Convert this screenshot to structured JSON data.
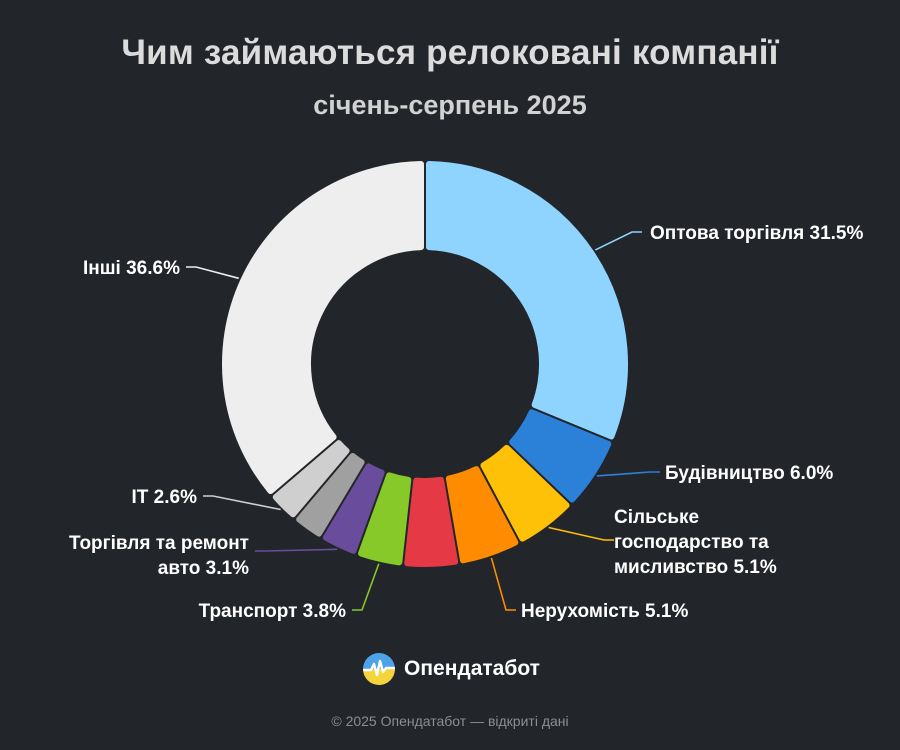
{
  "chart_data": {
    "type": "pie",
    "title": "Чим займаються релоковані компанії",
    "subtitle": "січень-серпень 2025",
    "slices": [
      {
        "label": "Оптова торгівля",
        "value": 31.5,
        "value_label": "31.5%",
        "color": "#8fd4ff",
        "label_lines": [
          "Оптова торгівля 31.5%"
        ]
      },
      {
        "label": "Будівництво",
        "value": 6.0,
        "value_label": "6.0%",
        "color": "#2b80d8",
        "label_lines": [
          "Будівництво 6.0%"
        ]
      },
      {
        "label": "Сільське господарство та мисливство",
        "value": 5.1,
        "value_label": "5.1%",
        "color": "#ffc107",
        "label_lines": [
          "Сільське",
          "господарство та",
          "мисливство 5.1%"
        ]
      },
      {
        "label": "Нерухомість",
        "value": 5.1,
        "value_label": "5.1%",
        "color": "#ff8c00",
        "label_lines": [
          "Нерухомість 5.1%"
        ]
      },
      {
        "label": "",
        "value": 4.5,
        "value_label": "",
        "color": "#e63946",
        "label_lines": []
      },
      {
        "label": "Транспорт",
        "value": 3.8,
        "value_label": "3.8%",
        "color": "#86c928",
        "label_lines": [
          "Транспорт 3.8%"
        ]
      },
      {
        "label": "Торгівля та ремонт авто",
        "value": 3.1,
        "value_label": "3.1%",
        "color": "#6a4c9c",
        "label_lines": [
          "Торгівля та ремонт",
          "авто 3.1%"
        ]
      },
      {
        "label": "",
        "value": 2.6,
        "value_label": "",
        "color": "#a0a0a0",
        "label_lines": []
      },
      {
        "label": "IT",
        "value": 2.6,
        "value_label": "2.6%",
        "color": "#cfcfcf",
        "label_lines": [
          "IT 2.6%"
        ]
      },
      {
        "label": "Інші",
        "value": 36.6,
        "value_label": "36.6%",
        "color": "#eeeeee",
        "label_lines": [
          "Інші 36.6%"
        ]
      }
    ]
  },
  "brand": {
    "name": "Опендатабот",
    "icon": "opendatabot-logo-icon"
  },
  "footer": {
    "text": "© 2025 Опендатабот — відкриті дані"
  }
}
